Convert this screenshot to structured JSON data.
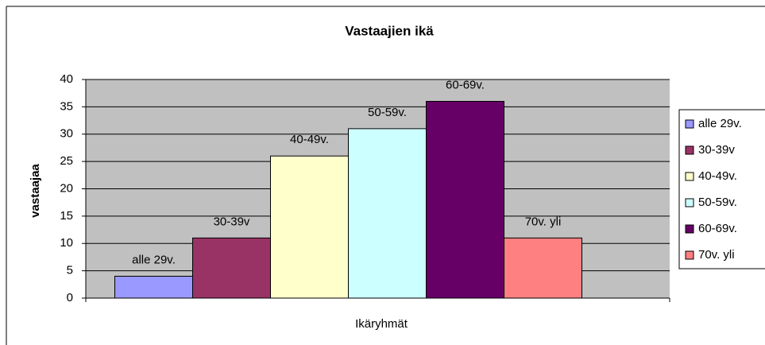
{
  "chart_data": {
    "type": "bar",
    "title": "Vastaajien ikä",
    "xlabel": "Ikäryhmät",
    "ylabel": "vastaajaa",
    "series": [
      {
        "name": "alle 29v.",
        "color": "#9999ff",
        "values": [
          4
        ]
      },
      {
        "name": "30-39v",
        "color": "#993366",
        "values": [
          11
        ]
      },
      {
        "name": "40-49v.",
        "color": "#ffffcc",
        "values": [
          26
        ]
      },
      {
        "name": "50-59v.",
        "color": "#ccffff",
        "values": [
          31
        ]
      },
      {
        "name": "60-69v.",
        "color": "#660066",
        "values": [
          36
        ]
      },
      {
        "name": "70v. yli",
        "color": "#ff8080",
        "values": [
          11
        ]
      }
    ],
    "ylim": [
      0,
      40
    ],
    "yticks": [
      0,
      5,
      10,
      15,
      20,
      25,
      30,
      35,
      40
    ],
    "grid": true,
    "legend": "right"
  }
}
